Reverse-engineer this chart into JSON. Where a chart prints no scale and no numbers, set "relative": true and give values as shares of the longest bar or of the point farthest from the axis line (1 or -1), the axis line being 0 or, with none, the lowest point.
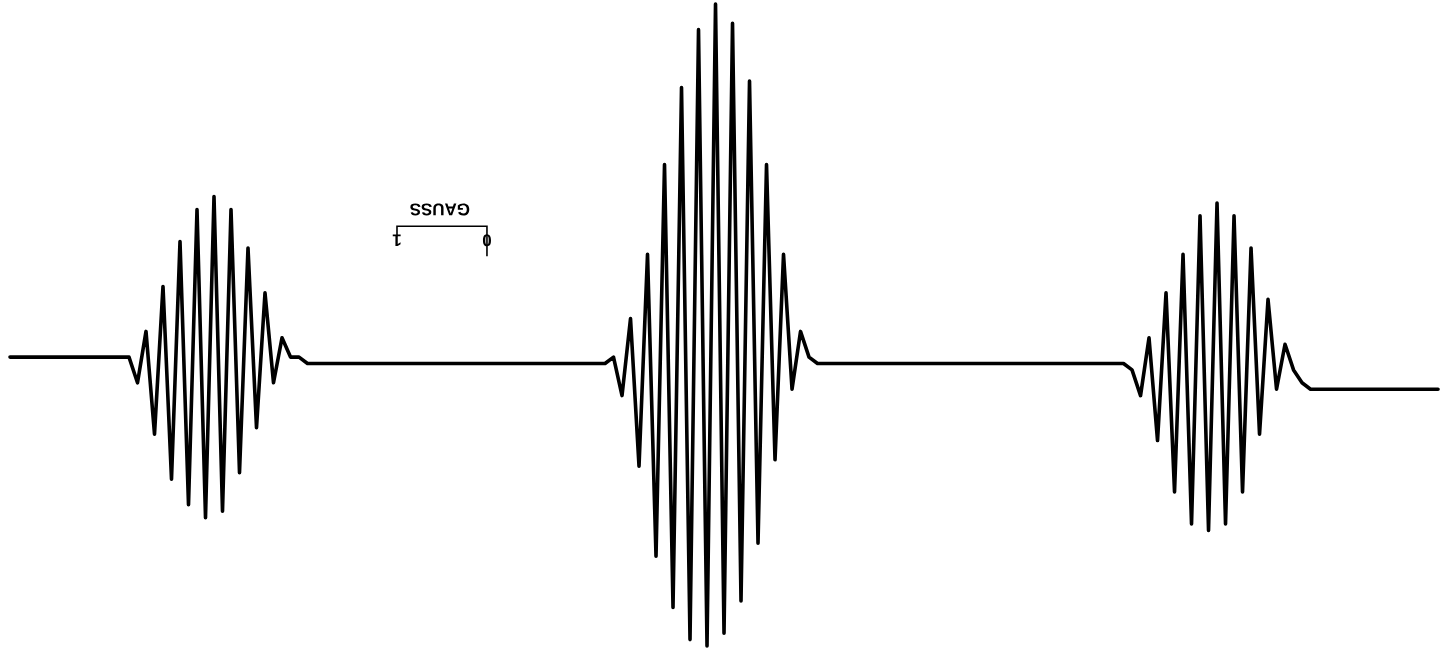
{
  "chart_data": {
    "type": "line",
    "relative": true,
    "color": "#000000",
    "tick_labels": false,
    "categories": [
      null,
      null,
      null,
      null,
      null,
      null,
      null,
      null,
      null,
      null,
      null,
      null,
      null,
      null,
      null,
      null,
      null,
      null,
      null,
      null,
      null,
      null,
      null,
      null,
      null,
      null,
      null,
      null,
      null,
      null,
      null,
      null,
      null,
      null,
      null,
      null,
      null,
      null,
      null,
      null,
      null,
      null,
      null,
      null,
      null,
      null,
      null,
      null,
      null,
      null,
      null,
      null,
      null,
      null,
      null,
      null,
      null,
      null,
      null,
      null,
      null,
      null,
      null,
      null,
      null,
      null,
      null,
      null,
      null,
      null,
      null,
      null,
      null,
      null,
      null,
      null,
      null,
      null,
      null,
      null,
      null,
      null,
      null,
      null,
      null,
      null,
      null,
      null,
      null,
      null,
      null,
      null,
      null,
      null,
      null,
      null,
      null,
      null,
      null,
      null,
      null,
      null,
      null,
      null,
      null,
      null,
      null,
      null,
      null,
      null,
      null,
      null,
      null,
      null,
      null,
      null,
      null,
      null,
      null,
      null,
      null,
      null,
      null,
      null,
      null,
      null,
      null,
      null,
      null,
      null,
      null,
      null,
      null,
      null,
      null,
      null,
      null,
      null,
      null,
      null,
      null,
      null,
      null,
      null,
      null,
      null,
      null,
      null,
      null,
      null,
      null,
      null,
      null,
      null,
      null,
      null,
      null,
      null,
      null,
      null,
      null,
      null,
      null,
      null,
      null,
      null,
      null,
      null,
      null
    ],
    "values": [
      0.45,
      0.45,
      0.45,
      0.45,
      0.45,
      0.45,
      0.45,
      0.45,
      0.45,
      0.45,
      0.45,
      0.45,
      0.45,
      0.45,
      0.45,
      0.41,
      0.49,
      0.33,
      0.56,
      0.26,
      0.63,
      0.22,
      0.68,
      0.2,
      0.7,
      0.21,
      0.68,
      0.27,
      0.62,
      0.34,
      0.55,
      0.41,
      0.48,
      0.45,
      0.45,
      0.44,
      0.44,
      0.44,
      0.44,
      0.44,
      0.44,
      0.44,
      0.44,
      0.44,
      0.44,
      0.44,
      0.44,
      0.44,
      0.44,
      0.44,
      0.44,
      0.44,
      0.44,
      0.44,
      0.44,
      0.44,
      0.44,
      0.44,
      0.44,
      0.44,
      0.44,
      0.44,
      0.44,
      0.44,
      0.44,
      0.44,
      0.44,
      0.44,
      0.44,
      0.44,
      0.44,
      0.45,
      0.39,
      0.51,
      0.28,
      0.61,
      0.14,
      0.75,
      0.06,
      0.87,
      0.01,
      0.96,
      0.0,
      1.0,
      0.02,
      0.97,
      0.07,
      0.88,
      0.16,
      0.75,
      0.29,
      0.61,
      0.4,
      0.49,
      0.45,
      0.44,
      0.44,
      0.44,
      0.44,
      0.44,
      0.44,
      0.44,
      0.44,
      0.44,
      0.44,
      0.44,
      0.44,
      0.44,
      0.44,
      0.44,
      0.44,
      0.44,
      0.44,
      0.44,
      0.44,
      0.44,
      0.44,
      0.44,
      0.44,
      0.44,
      0.44,
      0.44,
      0.44,
      0.44,
      0.44,
      0.44,
      0.44,
      0.44,
      0.44,
      0.44,
      0.44,
      0.44,
      0.43,
      0.39,
      0.48,
      0.32,
      0.55,
      0.24,
      0.61,
      0.19,
      0.67,
      0.18,
      0.69,
      0.19,
      0.67,
      0.24,
      0.62,
      0.33,
      0.54,
      0.4,
      0.47,
      0.43,
      0.41,
      0.4,
      0.4,
      0.4,
      0.4,
      0.4,
      0.4,
      0.4,
      0.4,
      0.4,
      0.4,
      0.4,
      0.4,
      0.4,
      0.4,
      0.4,
      0.4
    ],
    "annotations": [
      "0",
      "1",
      "GAUSS"
    ]
  }
}
